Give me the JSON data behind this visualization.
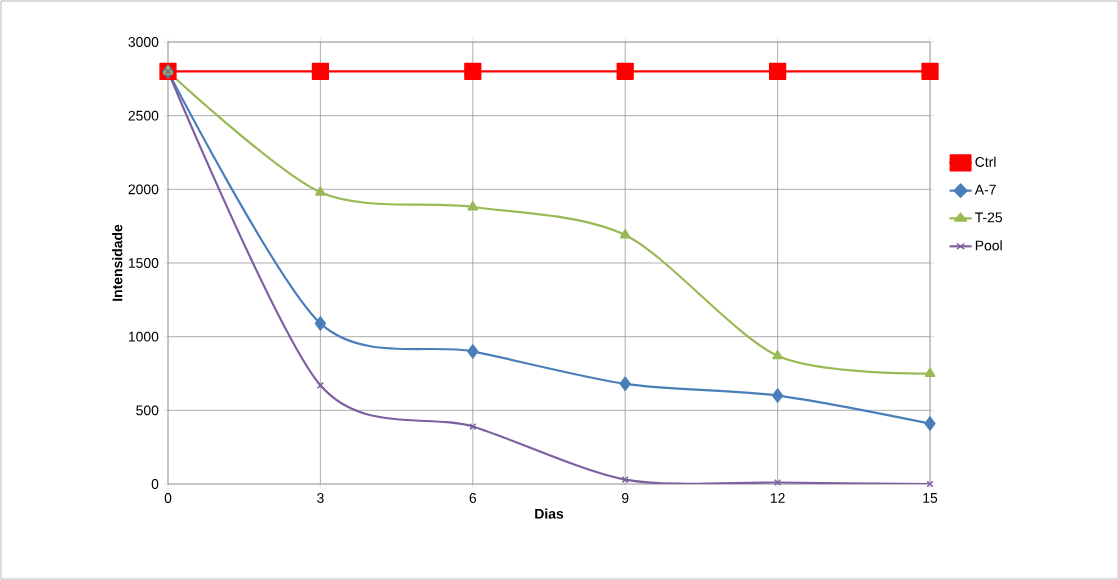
{
  "chart_data": {
    "type": "line",
    "xlabel": "Dias",
    "ylabel": "Intensidade",
    "x": [
      0,
      3,
      6,
      9,
      12,
      15
    ],
    "series": [
      {
        "name": "Ctrl",
        "color": "#ff0000",
        "marker": "square",
        "values": [
          2800,
          2800,
          2800,
          2800,
          2800,
          2800
        ]
      },
      {
        "name": "A-7",
        "color": "#4a7ebb",
        "marker": "diamond",
        "values": [
          2800,
          1090,
          900,
          680,
          600,
          410
        ]
      },
      {
        "name": "T-25",
        "color": "#98b954",
        "marker": "triangle",
        "values": [
          2800,
          1980,
          1880,
          1690,
          870,
          750
        ]
      },
      {
        "name": "Pool",
        "color": "#7d60a0",
        "marker": "cross",
        "values": [
          2800,
          670,
          390,
          30,
          10,
          0
        ]
      }
    ],
    "xlim": [
      0,
      15
    ],
    "xticks": [
      0,
      3,
      6,
      9,
      12,
      15
    ],
    "ylim": [
      0,
      3000
    ],
    "yticks": [
      0,
      500,
      1000,
      1500,
      2000,
      2500,
      3000
    ],
    "grid": true,
    "legend": "right",
    "line_style": "solid"
  }
}
